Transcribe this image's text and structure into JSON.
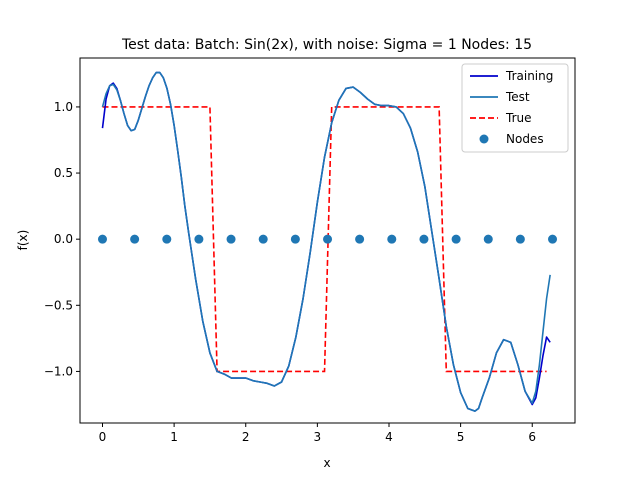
{
  "chart_data": {
    "type": "line",
    "title": "Test data: Batch: Sin(2x), with noise: Sigma = 1 Nodes: 15",
    "xlabel": "x",
    "ylabel": "f(x)",
    "xlim": [
      -0.314,
      6.597
    ],
    "ylim": [
      -1.39,
      1.37
    ],
    "xticks": [
      0,
      1,
      2,
      3,
      4,
      5,
      6
    ],
    "xtick_labels": [
      "0",
      "1",
      "2",
      "3",
      "4",
      "5",
      "6"
    ],
    "yticks": [
      1.0,
      0.5,
      0.0,
      -0.5,
      -1.0
    ],
    "ytick_labels": [
      "1.0",
      "0.5",
      "0.0",
      "−0.5",
      "−1.0"
    ],
    "grid": false,
    "legend_position": "top-right",
    "series": [
      {
        "name": "Training",
        "style": "solid",
        "color": "#0000cc",
        "x": [
          0.0,
          0.05,
          0.1,
          0.15,
          0.2,
          0.25,
          0.3,
          0.35,
          0.4,
          0.45,
          0.5,
          0.55,
          0.6,
          0.65,
          0.7,
          0.75,
          0.8,
          0.85,
          0.9,
          0.95,
          1.0,
          1.05,
          1.1,
          1.15,
          1.2,
          1.3,
          1.4,
          1.5,
          1.6,
          1.7,
          1.8,
          1.9,
          2.0,
          2.1,
          2.2,
          2.3,
          2.4,
          2.5,
          2.6,
          2.7,
          2.8,
          2.9,
          3.0,
          3.1,
          3.2,
          3.3,
          3.4,
          3.5,
          3.6,
          3.7,
          3.8,
          3.9,
          4.0,
          4.1,
          4.2,
          4.3,
          4.4,
          4.5,
          4.6,
          4.7,
          4.8,
          4.9,
          5.0,
          5.1,
          5.2,
          5.25,
          5.3,
          5.4,
          5.5,
          5.6,
          5.7,
          5.8,
          5.9,
          6.0,
          6.05,
          6.1,
          6.15,
          6.2,
          6.25
        ],
        "y": [
          0.84,
          1.06,
          1.16,
          1.18,
          1.14,
          1.05,
          0.95,
          0.86,
          0.82,
          0.83,
          0.9,
          0.99,
          1.08,
          1.16,
          1.22,
          1.26,
          1.26,
          1.22,
          1.14,
          1.02,
          0.86,
          0.67,
          0.47,
          0.25,
          0.06,
          -0.3,
          -0.62,
          -0.86,
          -1.0,
          -1.02,
          -1.05,
          -1.05,
          -1.05,
          -1.07,
          -1.08,
          -1.09,
          -1.11,
          -1.08,
          -0.96,
          -0.74,
          -0.45,
          -0.1,
          0.28,
          0.62,
          0.88,
          1.05,
          1.14,
          1.15,
          1.11,
          1.06,
          1.02,
          1.01,
          1.01,
          1.0,
          0.95,
          0.84,
          0.66,
          0.4,
          0.05,
          -0.3,
          -0.66,
          -0.95,
          -1.16,
          -1.28,
          -1.3,
          -1.28,
          -1.2,
          -1.05,
          -0.86,
          -0.76,
          -0.78,
          -0.95,
          -1.15,
          -1.25,
          -1.2,
          -1.05,
          -0.88,
          -0.74,
          -0.78
        ]
      },
      {
        "name": "Test",
        "style": "solid",
        "color": "#1f77b4",
        "x": [
          0.0,
          0.05,
          0.1,
          0.15,
          0.2,
          0.25,
          0.3,
          0.35,
          0.4,
          0.45,
          0.5,
          0.55,
          0.6,
          0.65,
          0.7,
          0.75,
          0.8,
          0.85,
          0.9,
          0.95,
          1.0,
          1.05,
          1.1,
          1.15,
          1.2,
          1.3,
          1.4,
          1.5,
          1.6,
          1.7,
          1.8,
          1.9,
          2.0,
          2.1,
          2.2,
          2.3,
          2.4,
          2.5,
          2.6,
          2.7,
          2.8,
          2.9,
          3.0,
          3.1,
          3.2,
          3.3,
          3.4,
          3.5,
          3.6,
          3.7,
          3.8,
          3.9,
          4.0,
          4.1,
          4.2,
          4.3,
          4.4,
          4.5,
          4.6,
          4.7,
          4.8,
          4.9,
          5.0,
          5.1,
          5.2,
          5.25,
          5.3,
          5.4,
          5.5,
          5.6,
          5.7,
          5.8,
          5.9,
          6.0,
          6.05,
          6.1,
          6.15,
          6.2,
          6.25
        ],
        "y": [
          1.0,
          1.1,
          1.16,
          1.17,
          1.13,
          1.05,
          0.95,
          0.86,
          0.82,
          0.83,
          0.9,
          0.99,
          1.08,
          1.16,
          1.22,
          1.26,
          1.26,
          1.22,
          1.14,
          1.02,
          0.86,
          0.67,
          0.47,
          0.25,
          0.06,
          -0.3,
          -0.62,
          -0.86,
          -1.0,
          -1.02,
          -1.05,
          -1.05,
          -1.05,
          -1.07,
          -1.08,
          -1.09,
          -1.11,
          -1.08,
          -0.96,
          -0.74,
          -0.45,
          -0.1,
          0.28,
          0.62,
          0.88,
          1.05,
          1.14,
          1.15,
          1.11,
          1.06,
          1.02,
          1.01,
          1.01,
          1.0,
          0.95,
          0.84,
          0.66,
          0.4,
          0.05,
          -0.3,
          -0.66,
          -0.95,
          -1.16,
          -1.28,
          -1.3,
          -1.28,
          -1.2,
          -1.05,
          -0.86,
          -0.76,
          -0.78,
          -0.95,
          -1.15,
          -1.24,
          -1.15,
          -0.95,
          -0.7,
          -0.45,
          -0.27
        ]
      },
      {
        "name": "True",
        "style": "dashed",
        "color": "#ff0000",
        "x": [
          0.0,
          1.5,
          1.6,
          3.1,
          3.2,
          4.7,
          4.8,
          6.2
        ],
        "y": [
          1.0,
          1.0,
          -1.0,
          -1.0,
          1.0,
          1.0,
          -1.0,
          -1.0
        ]
      },
      {
        "name": "Nodes",
        "style": "markers",
        "color": "#1f77b4",
        "x": [
          0.0,
          0.449,
          0.898,
          1.346,
          1.795,
          2.244,
          2.693,
          3.142,
          3.59,
          4.039,
          4.488,
          4.937,
          5.386,
          5.834,
          6.283
        ],
        "y": [
          0,
          0,
          0,
          0,
          0,
          0,
          0,
          0,
          0,
          0,
          0,
          0,
          0,
          0,
          0
        ]
      }
    ]
  }
}
